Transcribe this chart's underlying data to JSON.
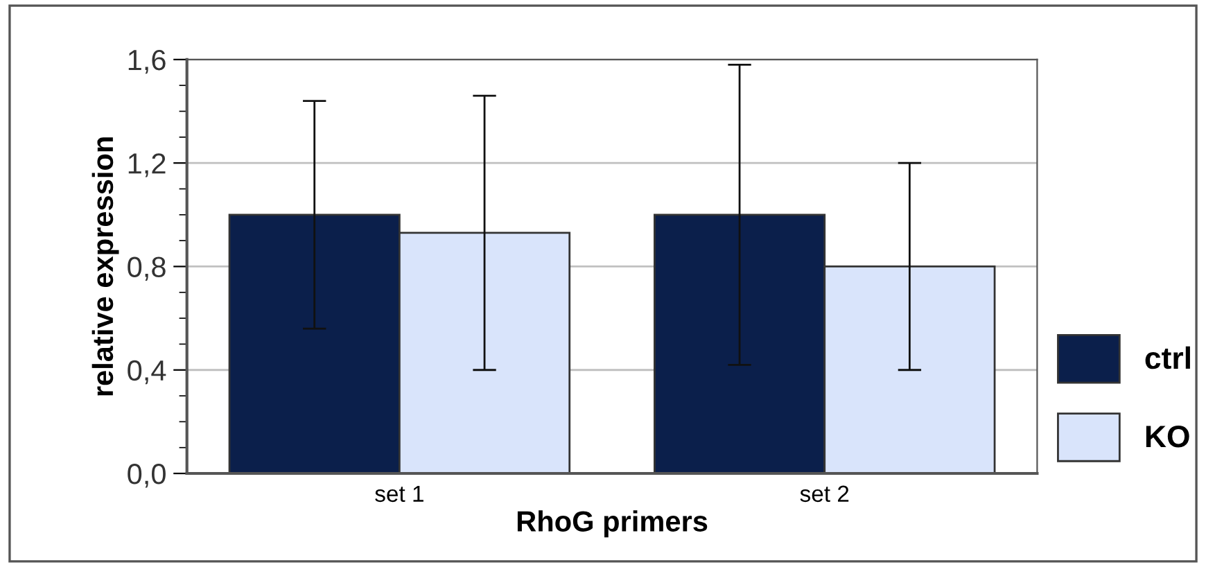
{
  "chart_data": {
    "type": "bar",
    "xlabel": "RhoG primers",
    "ylabel": "relative expression",
    "categories": [
      "set 1",
      "set 2"
    ],
    "series": [
      {
        "name": "ctrl",
        "color": "#0b1f4b",
        "values": [
          1.0,
          1.0
        ],
        "errors": [
          0.44,
          0.58
        ]
      },
      {
        "name": "KO",
        "color": "#d9e4fb",
        "values": [
          0.93,
          0.8
        ],
        "errors": [
          0.53,
          0.4
        ]
      }
    ],
    "ylim": [
      0,
      1.6
    ],
    "yticks": [
      {
        "value": 0,
        "label": "0,0"
      },
      {
        "value": 0.4,
        "label": "0,4"
      },
      {
        "value": 0.8,
        "label": "0,8"
      },
      {
        "value": 1.2,
        "label": "1,2"
      },
      {
        "value": 1.6,
        "label": "1,6"
      }
    ],
    "grid": "y",
    "legend": "right"
  }
}
